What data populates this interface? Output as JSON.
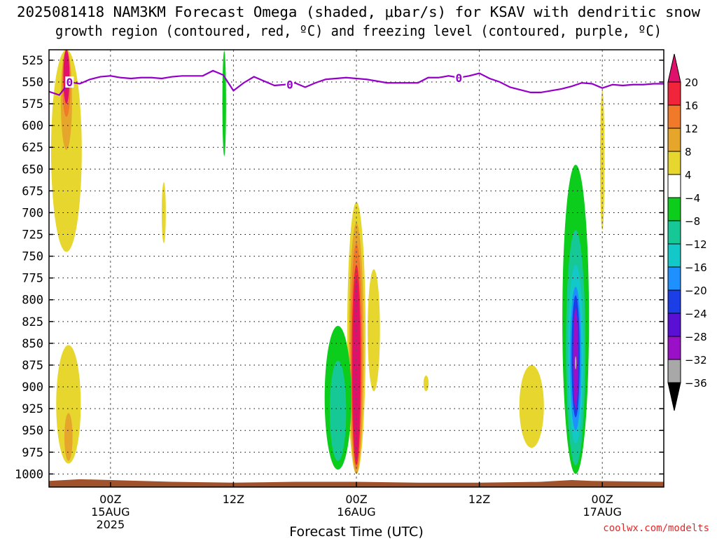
{
  "chart_data": {
    "type": "heatmap",
    "title": "2025081418 NAM3KM Forecast Omega (shaded, μbar/s) for KSAV with dendritic snow",
    "subtitle": "growth region (contoured, red, ºC) and freezing level (contoured, purple, ºC)",
    "xlabel": "Forecast Time (UTC)",
    "ylabel": "",
    "credit": "coolwx.com/modelts",
    "x_ticks": [
      {
        "label": "00Z",
        "sub": "15AUG",
        "year": "2025",
        "hour": 6
      },
      {
        "label": "12Z",
        "sub": "",
        "year": "",
        "hour": 18
      },
      {
        "label": "00Z",
        "sub": "16AUG",
        "year": "",
        "hour": 30
      },
      {
        "label": "12Z",
        "sub": "",
        "year": "",
        "hour": 42
      },
      {
        "label": "00Z",
        "sub": "17AUG",
        "year": "",
        "hour": 54
      }
    ],
    "x_range_hours": [
      0,
      60
    ],
    "y_ticks": [
      525,
      550,
      575,
      600,
      625,
      650,
      675,
      700,
      725,
      750,
      775,
      800,
      825,
      850,
      875,
      900,
      925,
      950,
      975,
      1000
    ],
    "y_range_hPa": [
      513,
      1015
    ],
    "grid": true,
    "colorbar": {
      "labels": [
        "20",
        "16",
        "12",
        "8",
        "4",
        "−4",
        "−8",
        "−12",
        "−16",
        "−20",
        "−24",
        "−28",
        "−32",
        "−36"
      ],
      "top_arrow_color": "#e0116a",
      "bins": [
        {
          "min": 16,
          "max": 20,
          "color": "#f0243a"
        },
        {
          "min": 12,
          "max": 16,
          "color": "#f07a2a"
        },
        {
          "min": 8,
          "max": 12,
          "color": "#e6a62c"
        },
        {
          "min": 4,
          "max": 8,
          "color": "#e6d62e"
        },
        {
          "min": -4,
          "max": 4,
          "color": "#ffffff"
        },
        {
          "min": -8,
          "max": -4,
          "color": "#0ccc1c"
        },
        {
          "min": -12,
          "max": -8,
          "color": "#16c896"
        },
        {
          "min": -16,
          "max": -12,
          "color": "#12c8c8"
        },
        {
          "min": -20,
          "max": -16,
          "color": "#1e90ff"
        },
        {
          "min": -24,
          "max": -20,
          "color": "#1c3ee6"
        },
        {
          "min": -28,
          "max": -24,
          "color": "#5a10d4"
        },
        {
          "min": -32,
          "max": -28,
          "color": "#9a10c6"
        },
        {
          "min": -36,
          "max": -32,
          "color": "#a8a8a8"
        }
      ],
      "bottom_arrow_color": "#000000"
    },
    "omega_features": [
      {
        "name": "rising-column-early",
        "hour": 1.7,
        "p_top": 513,
        "p_bottom": 745,
        "levels": [
          {
            "value": 6,
            "color": "#e6d62e",
            "hour_halfwidth": 1.5,
            "p_top": 513,
            "p_bottom": 745
          },
          {
            "value": 10,
            "color": "#e6a62c",
            "hour_halfwidth": 0.55,
            "p_top": 513,
            "p_bottom": 628
          },
          {
            "value": 14,
            "color": "#f07a2a",
            "hour_halfwidth": 0.4,
            "p_top": 513,
            "p_bottom": 590
          },
          {
            "value": 20,
            "color": "#e0116a",
            "hour_halfwidth": 0.3,
            "p_top": 513,
            "p_bottom": 575
          }
        ]
      },
      {
        "name": "lower-lobe-early",
        "hour": 1.9,
        "p_top": 852,
        "p_bottom": 988,
        "levels": [
          {
            "value": 6,
            "color": "#e6d62e",
            "hour_halfwidth": 1.2,
            "p_top": 852,
            "p_bottom": 988
          },
          {
            "value": 10,
            "color": "#e6a62c",
            "hour_halfwidth": 0.4,
            "p_top": 930,
            "p_bottom": 985
          }
        ]
      },
      {
        "name": "weak-lift-day1",
        "hour": 11.2,
        "p_top": 665,
        "p_bottom": 735,
        "levels": [
          {
            "value": 5,
            "color": "#e6d62e",
            "hour_halfwidth": 0.2,
            "p_top": 665,
            "p_bottom": 735
          }
        ]
      },
      {
        "name": "sinking-streak-12z",
        "hour": 17.1,
        "p_top": 514,
        "p_bottom": 635,
        "levels": [
          {
            "value": -6,
            "color": "#0ccc1c",
            "hour_halfwidth": 0.18,
            "p_top": 514,
            "p_bottom": 635
          }
        ]
      },
      {
        "name": "convective-core-16aug",
        "hour": 30.0,
        "p_top": 688,
        "p_bottom": 1000,
        "levels": [
          {
            "value": 6,
            "color": "#e6d62e",
            "hour_halfwidth": 0.9,
            "p_top": 688,
            "p_bottom": 1000
          },
          {
            "value": 10,
            "color": "#e6a62c",
            "hour_halfwidth": 0.72,
            "p_top": 712,
            "p_bottom": 1000
          },
          {
            "value": 14,
            "color": "#f07a2a",
            "hour_halfwidth": 0.58,
            "p_top": 735,
            "p_bottom": 995
          },
          {
            "value": 18,
            "color": "#f0243a",
            "hour_halfwidth": 0.45,
            "p_top": 760,
            "p_bottom": 990
          },
          {
            "value": 20,
            "color": "#e0116a",
            "hour_halfwidth": 0.35,
            "p_top": 775,
            "p_bottom": 985
          }
        ]
      },
      {
        "name": "downdraft-west-16aug",
        "hour": 28.2,
        "p_top": 830,
        "p_bottom": 995,
        "levels": [
          {
            "value": -6,
            "color": "#0ccc1c",
            "hour_halfwidth": 1.3,
            "p_top": 830,
            "p_bottom": 995
          },
          {
            "value": -10,
            "color": "#16c896",
            "hour_halfwidth": 0.8,
            "p_top": 870,
            "p_bottom": 985
          }
        ]
      },
      {
        "name": "lift-east-16aug",
        "hour": 31.7,
        "p_top": 765,
        "p_bottom": 905,
        "levels": [
          {
            "value": 6,
            "color": "#e6d62e",
            "hour_halfwidth": 0.6,
            "p_top": 765,
            "p_bottom": 905
          }
        ]
      },
      {
        "name": "small-lift-blob",
        "hour": 36.8,
        "p_top": 887,
        "p_bottom": 905,
        "levels": [
          {
            "value": 5,
            "color": "#e6d62e",
            "hour_halfwidth": 0.25,
            "p_top": 887,
            "p_bottom": 905
          }
        ]
      },
      {
        "name": "lift-blob-late",
        "hour": 47.1,
        "p_top": 875,
        "p_bottom": 970,
        "levels": [
          {
            "value": 6,
            "color": "#e6d62e",
            "hour_halfwidth": 1.2,
            "p_top": 875,
            "p_bottom": 970
          }
        ]
      },
      {
        "name": "strong-descent-17aug",
        "hour": 51.4,
        "p_top": 645,
        "p_bottom": 1000,
        "levels": [
          {
            "value": -6,
            "color": "#0ccc1c",
            "hour_halfwidth": 1.3,
            "p_top": 645,
            "p_bottom": 1000
          },
          {
            "value": -10,
            "color": "#16c896",
            "hour_halfwidth": 0.95,
            "p_top": 720,
            "p_bottom": 990
          },
          {
            "value": -14,
            "color": "#12c8c8",
            "hour_halfwidth": 0.75,
            "p_top": 760,
            "p_bottom": 965
          },
          {
            "value": -18,
            "color": "#1e90ff",
            "hour_halfwidth": 0.55,
            "p_top": 785,
            "p_bottom": 950
          },
          {
            "value": -22,
            "color": "#1c3ee6",
            "hour_halfwidth": 0.4,
            "p_top": 795,
            "p_bottom": 935
          },
          {
            "value": -28,
            "color": "#9a10c6",
            "hour_halfwidth": 0.25,
            "p_top": 810,
            "p_bottom": 925
          },
          {
            "value": -34,
            "color": "#a8a8a8",
            "hour_halfwidth": 0.07,
            "p_top": 865,
            "p_bottom": 880
          }
        ]
      },
      {
        "name": "lift-streak-upper-17aug",
        "hour": 54.0,
        "p_top": 560,
        "p_bottom": 720,
        "levels": [
          {
            "value": 5,
            "color": "#e6d62e",
            "hour_halfwidth": 0.22,
            "p_top": 560,
            "p_bottom": 720
          }
        ]
      }
    ],
    "freezing_level": {
      "name": "freezing-level",
      "value_label": "0",
      "color": "#9400c8",
      "label_hours": [
        2.0,
        23.5,
        40.0
      ],
      "points": [
        [
          0.0,
          561
        ],
        [
          1.0,
          565
        ],
        [
          2.0,
          550
        ],
        [
          3.0,
          552
        ],
        [
          4.0,
          547
        ],
        [
          5.0,
          544
        ],
        [
          6.0,
          543
        ],
        [
          7.0,
          545
        ],
        [
          8.0,
          546
        ],
        [
          9.0,
          545
        ],
        [
          10.0,
          545
        ],
        [
          11.0,
          546
        ],
        [
          12.0,
          544
        ],
        [
          13.0,
          543
        ],
        [
          14.0,
          543
        ],
        [
          15.0,
          543
        ],
        [
          16.0,
          537
        ],
        [
          17.0,
          542
        ],
        [
          18.0,
          560
        ],
        [
          19.0,
          551
        ],
        [
          20.0,
          544
        ],
        [
          21.0,
          549
        ],
        [
          22.0,
          554
        ],
        [
          23.0,
          553
        ],
        [
          24.0,
          551
        ],
        [
          25.0,
          556
        ],
        [
          26.0,
          551
        ],
        [
          27.0,
          547
        ],
        [
          28.0,
          546
        ],
        [
          29.0,
          545
        ],
        [
          30.0,
          546
        ],
        [
          31.0,
          547
        ],
        [
          32.0,
          549
        ],
        [
          33.0,
          551
        ],
        [
          34.0,
          551
        ],
        [
          35.0,
          551
        ],
        [
          36.0,
          551
        ],
        [
          37.0,
          545
        ],
        [
          38.0,
          545
        ],
        [
          39.0,
          543
        ],
        [
          40.0,
          545
        ],
        [
          41.0,
          543
        ],
        [
          42.0,
          540
        ],
        [
          43.0,
          546
        ],
        [
          44.0,
          550
        ],
        [
          45.0,
          556
        ],
        [
          46.0,
          559
        ],
        [
          47.0,
          562
        ],
        [
          48.0,
          562
        ],
        [
          49.0,
          560
        ],
        [
          50.0,
          558
        ],
        [
          51.0,
          555
        ],
        [
          52.0,
          551
        ],
        [
          53.0,
          552
        ],
        [
          54.0,
          557
        ],
        [
          55.0,
          553
        ],
        [
          56.0,
          554
        ],
        [
          57.0,
          553
        ],
        [
          58.0,
          553
        ],
        [
          59.0,
          552
        ],
        [
          60.0,
          552
        ]
      ]
    },
    "surface": {
      "name": "ground-surface",
      "color": "#a0522d",
      "points": [
        [
          0.0,
          1008
        ],
        [
          3.0,
          1006
        ],
        [
          6.0,
          1007
        ],
        [
          12.0,
          1009
        ],
        [
          18.0,
          1010
        ],
        [
          24.0,
          1009
        ],
        [
          30.0,
          1009
        ],
        [
          36.0,
          1010
        ],
        [
          42.0,
          1010
        ],
        [
          48.0,
          1009
        ],
        [
          51.0,
          1007
        ],
        [
          53.0,
          1008
        ],
        [
          60.0,
          1009
        ]
      ]
    }
  }
}
